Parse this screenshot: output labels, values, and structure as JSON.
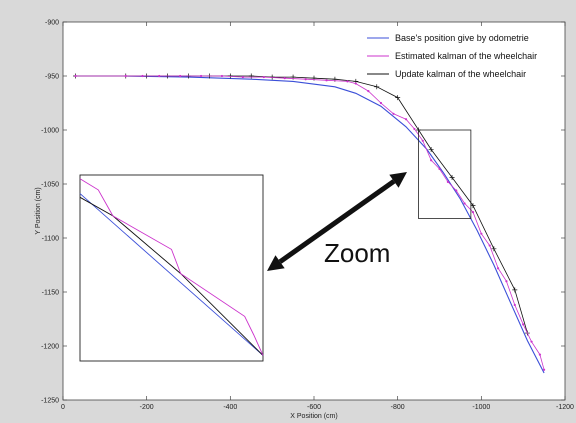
{
  "chart_data": {
    "type": "line",
    "title": "",
    "xlabel": "X Position (cm)",
    "ylabel": "Y Position (cm)",
    "xlim": [
      0,
      -1200
    ],
    "ylim": [
      -1250,
      -900
    ],
    "xticks": [
      0,
      -200,
      -400,
      -600,
      -800,
      -1000,
      -1200
    ],
    "xtick_labels": [
      "0",
      "-200",
      "-400",
      "-600",
      "-800",
      "-1000",
      "-1200"
    ],
    "yticks": [
      -900,
      -950,
      -1000,
      -1050,
      -1100,
      -1150,
      -1200,
      -1250
    ],
    "ytick_labels": [
      "-900",
      "-950",
      "-1000",
      "-1050",
      "-1100",
      "-1150",
      "-1200",
      "-1250"
    ],
    "legend_position": "top-right",
    "grid": false,
    "series": [
      {
        "name": "Base's position give by odometrie",
        "color": "#3b4fd8",
        "marker": "none",
        "x": [
          -30,
          -150,
          -300,
          -450,
          -550,
          -650,
          -700,
          -760,
          -820,
          -870,
          -910,
          -950,
          -990,
          -1030,
          -1070,
          -1110,
          -1150
        ],
        "y": [
          -950,
          -950,
          -951,
          -953,
          -955,
          -960,
          -966,
          -978,
          -997,
          -1018,
          -1040,
          -1064,
          -1093,
          -1125,
          -1160,
          -1195,
          -1225
        ]
      },
      {
        "name": "Estimated kalman of the wheelchair",
        "color": "#cc33cc",
        "marker": "dot",
        "x": [
          -30,
          -150,
          -190,
          -230,
          -280,
          -330,
          -380,
          -430,
          -480,
          -530,
          -580,
          -630,
          -680,
          -700,
          -730,
          -760,
          -790,
          -820,
          -840,
          -860,
          -880,
          -900,
          -920,
          -940,
          -960,
          -980,
          -1000,
          -1020,
          -1040,
          -1060,
          -1080,
          -1100,
          -1120,
          -1140,
          -1150
        ],
        "y": [
          -950,
          -950,
          -950,
          -950,
          -950,
          -950,
          -950,
          -951,
          -951,
          -952,
          -953,
          -954,
          -955,
          -957,
          -964,
          -975,
          -985,
          -990,
          -999,
          -1010,
          -1028,
          -1036,
          -1048,
          -1056,
          -1068,
          -1076,
          -1096,
          -1107,
          -1128,
          -1140,
          -1162,
          -1180,
          -1196,
          -1208,
          -1222
        ]
      },
      {
        "name": "Update kalman of the wheelchair",
        "color": "#111111",
        "marker": "plus",
        "x": [
          -30,
          -150,
          -200,
          -250,
          -300,
          -350,
          -400,
          -450,
          -500,
          -550,
          -600,
          -650,
          -700,
          -750,
          -800,
          -850,
          -880,
          -930,
          -980,
          -1030,
          -1080,
          -1110
        ],
        "y": [
          -950,
          -950,
          -950,
          -950,
          -950,
          -950,
          -950,
          -950,
          -951,
          -951,
          -952,
          -953,
          -955,
          -960,
          -970,
          -1000,
          -1018,
          -1044,
          -1070,
          -1110,
          -1148,
          -1188
        ]
      }
    ],
    "annotations": [
      {
        "type": "zoom-box",
        "x": [
          -850,
          -975
        ],
        "y": [
          -1000,
          -1082
        ]
      },
      {
        "type": "text",
        "text": "Zoom"
      }
    ],
    "inset": {
      "segments": [
        {
          "series": "Base's position give by odometrie",
          "color": "#3b4fd8",
          "x": [
            0,
            1
          ],
          "y": [
            0.9,
            0.03
          ]
        },
        {
          "series": "Update kalman of the wheelchair",
          "color": "#111111",
          "x": [
            0,
            0.18,
            0.55,
            1
          ],
          "y": [
            0.88,
            0.78,
            0.47,
            0.03
          ]
        },
        {
          "series": "Estimated kalman of the wheelchair",
          "color": "#cc33cc",
          "x": [
            0,
            0.1,
            0.18,
            0.5,
            0.55,
            0.9,
            0.95,
            1
          ],
          "y": [
            0.98,
            0.92,
            0.78,
            0.6,
            0.47,
            0.24,
            0.14,
            0.03
          ]
        }
      ]
    }
  }
}
